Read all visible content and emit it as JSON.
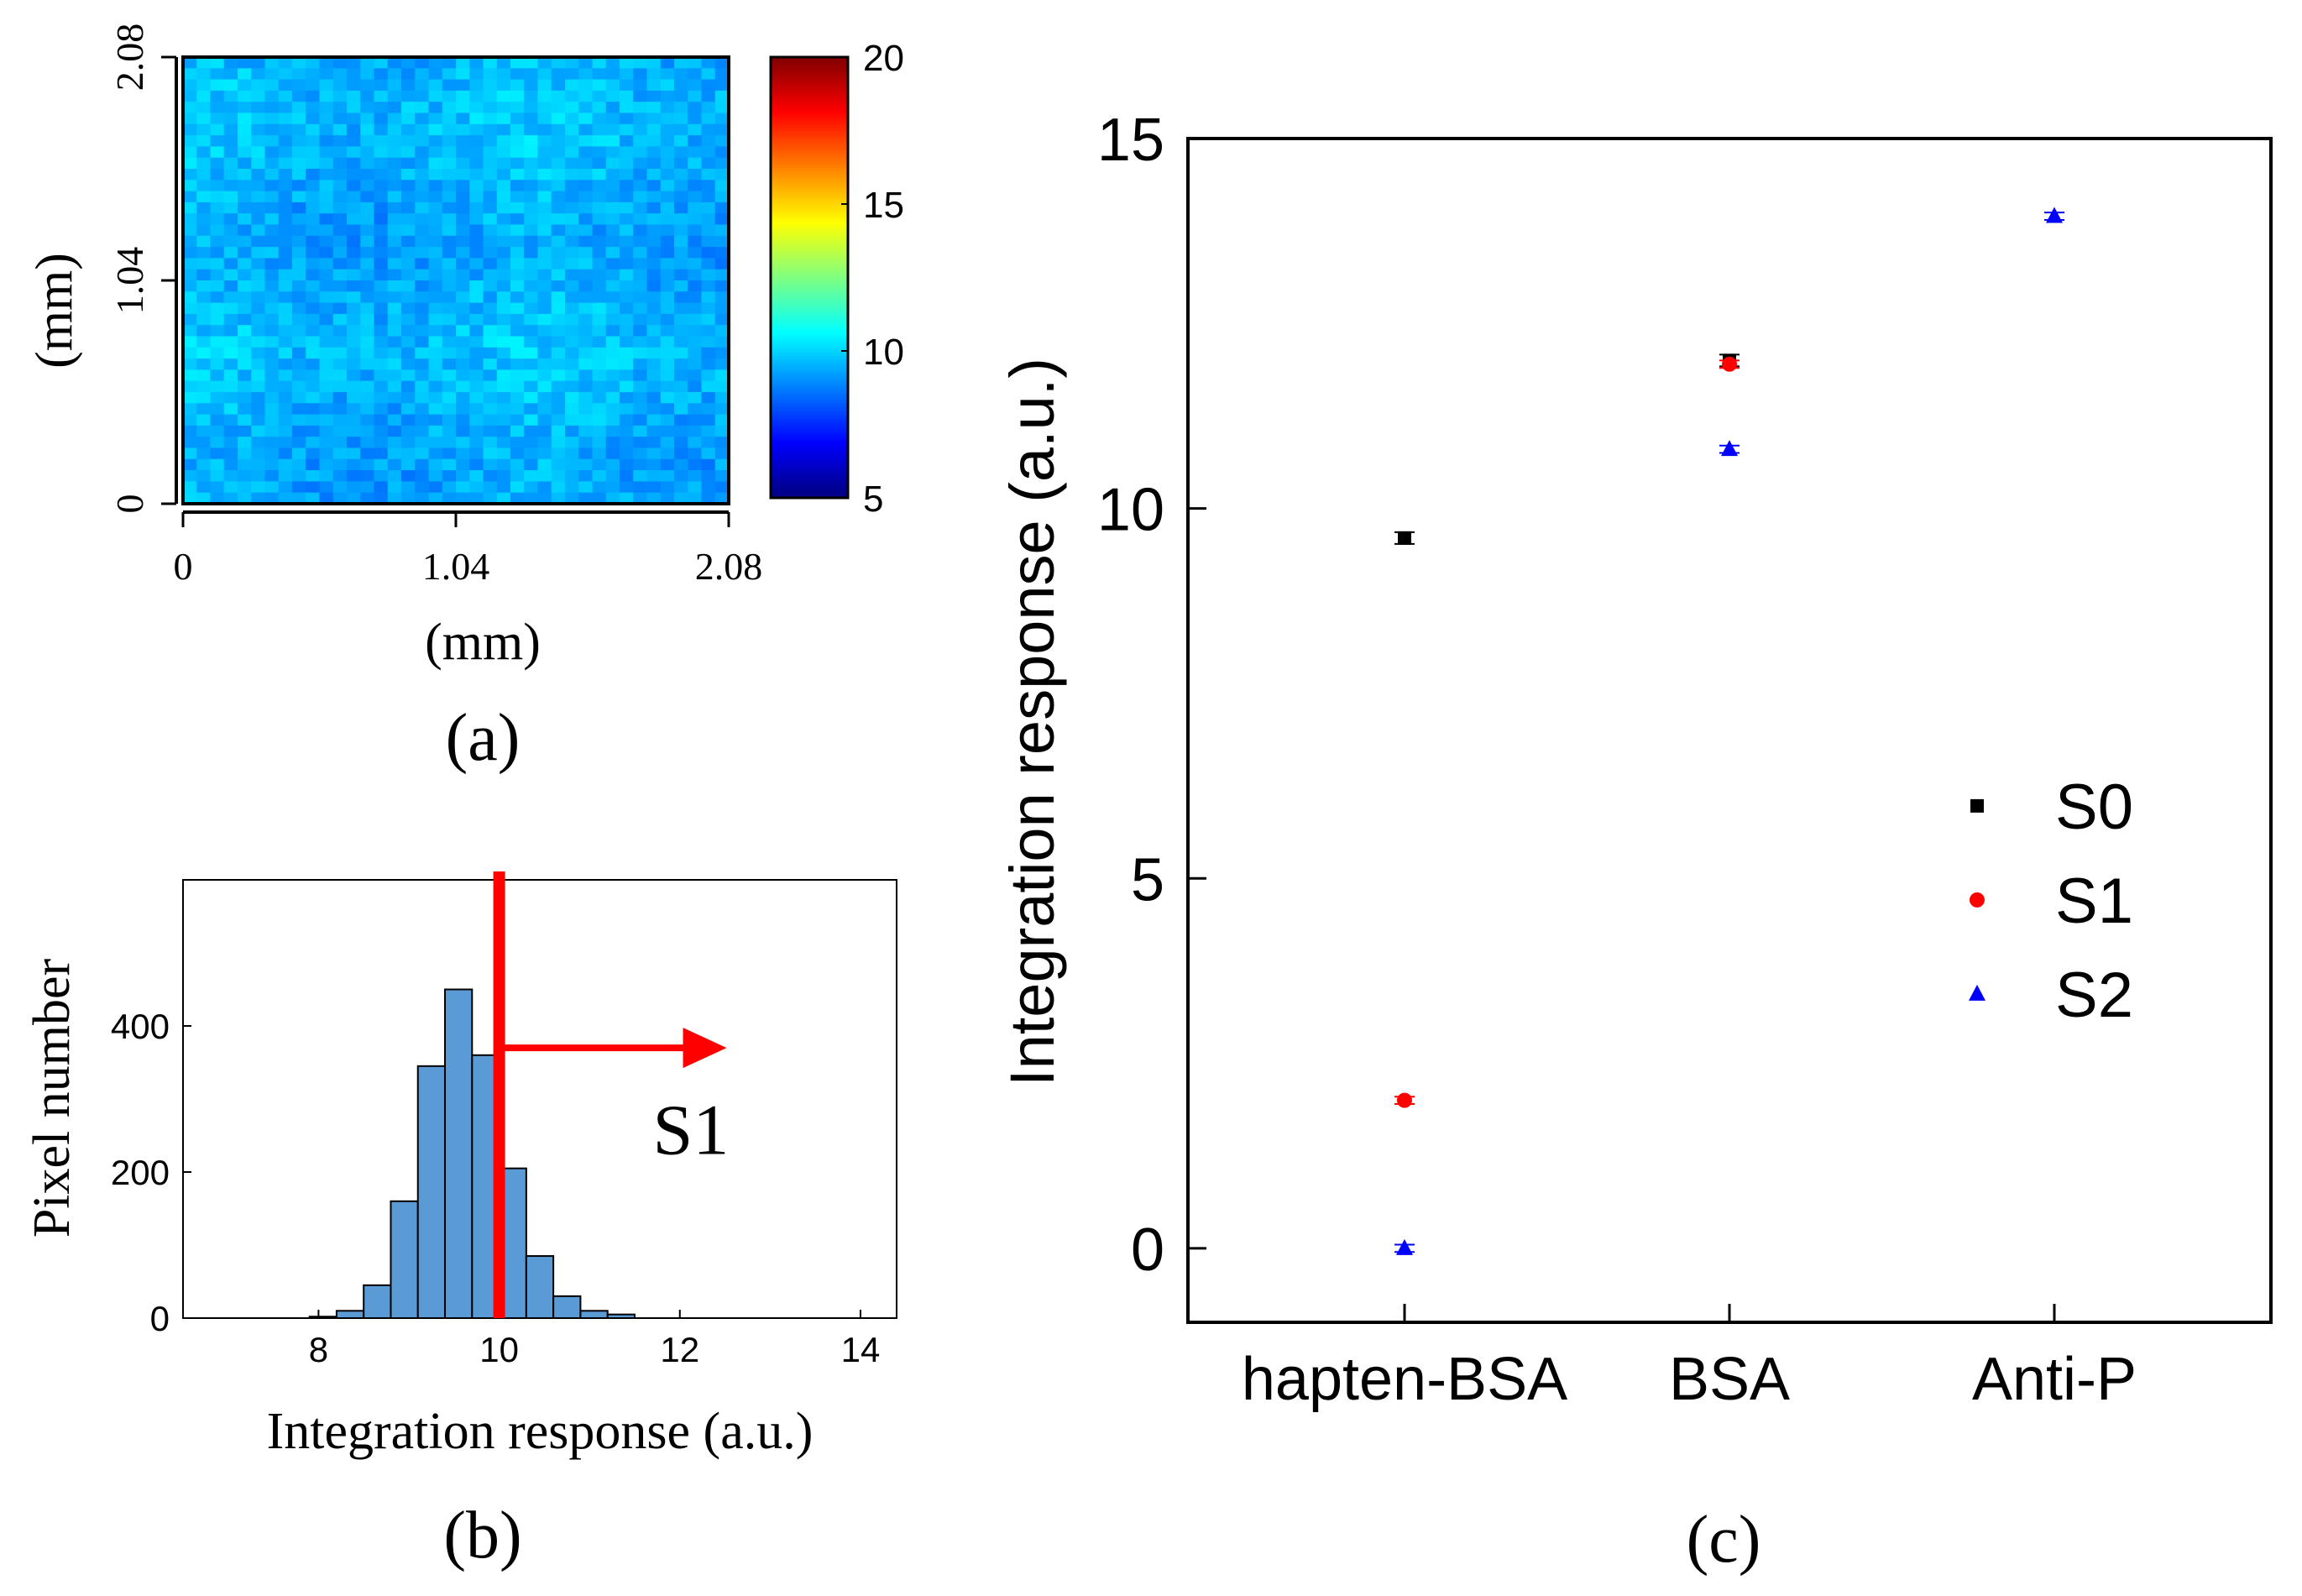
{
  "colors": {
    "axis": "#000000",
    "heatmap_base": "#3fa5e0",
    "hist_bar": "#5b9bd5",
    "hist_edge": "#000000",
    "threshold": "#ff0000",
    "s0": "#000000",
    "s1": "#ff0000",
    "s2": "#0000ff"
  },
  "chart_data": [
    {
      "id": "a",
      "type": "heatmap",
      "panel_label": "(a)",
      "xlabel": "(mm)",
      "ylabel": "(mm)",
      "x_ticks": [
        "0",
        "1.04",
        "2.08"
      ],
      "y_ticks": [
        "0",
        "1.04",
        "2.08"
      ],
      "xlim": [
        0,
        2.08
      ],
      "ylim": [
        0,
        2.08
      ],
      "grid_size": 40,
      "mean_value": 9.5,
      "value_spread": 0.6,
      "colorbar": {
        "min": 5,
        "max": 20,
        "ticks": [
          "5",
          "10",
          "15",
          "20"
        ],
        "tick_values": [
          5,
          10,
          15,
          20
        ],
        "colormap": "jet"
      }
    },
    {
      "id": "b",
      "type": "bar",
      "subtype": "histogram",
      "panel_label": "(b)",
      "xlabel": "Integration response (a.u.)",
      "ylabel": "Pixel number",
      "xlim": [
        6.5,
        14.4
      ],
      "ylim": [
        0,
        600
      ],
      "x_ticks": [
        "8",
        "10",
        "12",
        "14"
      ],
      "x_tick_values": [
        8,
        10,
        12,
        14
      ],
      "y_ticks": [
        "0",
        "200",
        "400"
      ],
      "y_tick_values": [
        0,
        200,
        400
      ],
      "bin_start": 7.9,
      "bin_width": 0.3,
      "counts": [
        2,
        10,
        45,
        160,
        345,
        450,
        360,
        205,
        85,
        30,
        10,
        5
      ],
      "threshold": 10.0,
      "threshold_label": "S1",
      "arrow_end": 12.5
    },
    {
      "id": "c",
      "type": "scatter",
      "panel_label": "(c)",
      "xlabel": "",
      "ylabel": "Integration response (a.u.)",
      "categories": [
        "hapten-BSA",
        "BSA",
        "Anti-P"
      ],
      "ylim": [
        -1,
        15
      ],
      "y_ticks": [
        "0",
        "5",
        "10",
        "15"
      ],
      "y_tick_values": [
        0,
        5,
        10,
        15
      ],
      "series": [
        {
          "name": "S0",
          "marker": "square",
          "values": [
            9.6,
            12.0,
            null
          ],
          "errors": [
            0.08,
            0.08,
            0
          ]
        },
        {
          "name": "S1",
          "marker": "circle",
          "values": [
            2.0,
            11.95,
            null
          ],
          "errors": [
            0.05,
            0.05,
            0
          ]
        },
        {
          "name": "S2",
          "marker": "triangle",
          "values": [
            0.0,
            10.8,
            13.95
          ],
          "errors": [
            0.05,
            0.05,
            0.05
          ]
        }
      ],
      "legend_position": "lower-right"
    }
  ]
}
